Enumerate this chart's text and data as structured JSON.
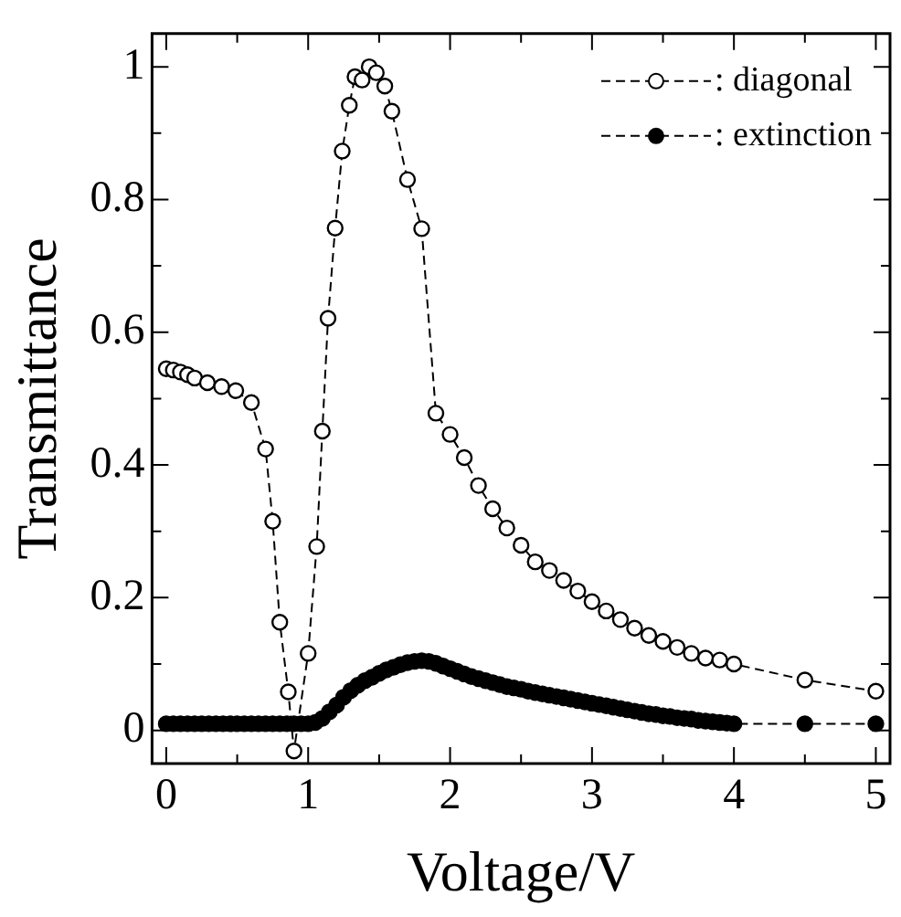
{
  "chart_data": {
    "type": "line",
    "xlabel": "Voltage/V",
    "ylabel": "Transmittance",
    "xlim": [
      -0.1,
      5.1
    ],
    "ylim": [
      -0.05,
      1.05
    ],
    "xticks": [
      0,
      {
        "value": 0.5,
        "label": null
      },
      1,
      {
        "value": 1.5,
        "label": null
      },
      2,
      {
        "value": 2.5,
        "label": null
      },
      3,
      {
        "value": 3.5,
        "label": null
      },
      4,
      {
        "value": 4.5,
        "label": null
      },
      5
    ],
    "yticks": [
      0,
      {
        "value": 0.1,
        "label": null
      },
      0.2,
      {
        "value": 0.3,
        "label": null
      },
      0.4,
      {
        "value": 0.5,
        "label": null
      },
      0.6,
      {
        "value": 0.7,
        "label": null
      },
      0.8,
      {
        "value": 0.9,
        "label": null
      },
      1
    ],
    "grid": false,
    "legend": "top right",
    "marker": "circle",
    "line_style": "dashed",
    "series": [
      {
        "name": ": diagonal",
        "color": "#000000",
        "x": [
          0,
          0.05,
          0.1,
          0.15,
          0.2,
          0.29,
          0.39,
          0.49,
          0.6,
          0.7,
          0.75,
          0.8,
          0.86,
          0.9,
          1.0,
          1.06,
          1.1,
          1.14,
          1.19,
          1.24,
          1.29,
          1.33,
          1.38,
          1.43,
          1.48,
          1.54,
          1.59,
          1.7,
          1.8,
          1.9,
          2.0,
          2.1,
          2.2,
          2.3,
          2.4,
          2.5,
          2.6,
          2.7,
          2.8,
          2.9,
          3.0,
          3.1,
          3.2,
          3.3,
          3.4,
          3.5,
          3.6,
          3.7,
          3.8,
          3.9,
          4.0,
          4.5,
          5.0
        ],
        "values": [
          0.545,
          0.543,
          0.54,
          0.536,
          0.531,
          0.524,
          0.518,
          0.512,
          0.494,
          0.424,
          0.315,
          0.163,
          0.058,
          -0.031,
          0.116,
          0.277,
          0.451,
          0.621,
          0.757,
          0.873,
          0.942,
          0.985,
          0.98,
          1.0,
          0.991,
          0.971,
          0.933,
          0.83,
          0.756,
          0.478,
          0.446,
          0.411,
          0.369,
          0.334,
          0.305,
          0.279,
          0.254,
          0.241,
          0.226,
          0.21,
          0.194,
          0.18,
          0.167,
          0.154,
          0.143,
          0.134,
          0.125,
          0.116,
          0.109,
          0.106,
          0.1,
          0.076,
          0.059
        ]
      },
      {
        "name": ": extinction",
        "color": "#000000",
        "x": [
          0,
          0.05,
          0.1,
          0.15,
          0.2,
          0.25,
          0.3,
          0.35,
          0.4,
          0.45,
          0.5,
          0.55,
          0.6,
          0.65,
          0.7,
          0.75,
          0.8,
          0.85,
          0.9,
          0.95,
          1.0,
          1.05,
          1.1,
          1.15,
          1.2,
          1.25,
          1.3,
          1.35,
          1.4,
          1.45,
          1.5,
          1.55,
          1.6,
          1.65,
          1.7,
          1.75,
          1.8,
          1.85,
          1.9,
          1.95,
          2.0,
          2.05,
          2.1,
          2.15,
          2.2,
          2.25,
          2.3,
          2.35,
          2.4,
          2.45,
          2.5,
          2.55,
          2.6,
          2.65,
          2.7,
          2.75,
          2.8,
          2.85,
          2.9,
          2.95,
          3.0,
          3.05,
          3.1,
          3.15,
          3.2,
          3.25,
          3.3,
          3.35,
          3.4,
          3.45,
          3.5,
          3.55,
          3.6,
          3.65,
          3.7,
          3.75,
          3.8,
          3.85,
          3.9,
          3.95,
          4.0,
          4.5,
          5.0
        ],
        "values": [
          0.01,
          0.01,
          0.01,
          0.01,
          0.01,
          0.01,
          0.01,
          0.01,
          0.01,
          0.01,
          0.01,
          0.01,
          0.01,
          0.01,
          0.01,
          0.01,
          0.01,
          0.01,
          0.01,
          0.01,
          0.01,
          0.012,
          0.018,
          0.028,
          0.038,
          0.05,
          0.06,
          0.068,
          0.075,
          0.08,
          0.086,
          0.091,
          0.095,
          0.099,
          0.102,
          0.104,
          0.105,
          0.104,
          0.101,
          0.097,
          0.093,
          0.089,
          0.085,
          0.081,
          0.078,
          0.075,
          0.072,
          0.069,
          0.066,
          0.064,
          0.062,
          0.059,
          0.057,
          0.055,
          0.053,
          0.051,
          0.049,
          0.047,
          0.045,
          0.043,
          0.041,
          0.039,
          0.037,
          0.035,
          0.033,
          0.031,
          0.029,
          0.027,
          0.025,
          0.024,
          0.022,
          0.021,
          0.019,
          0.018,
          0.017,
          0.015,
          0.014,
          0.013,
          0.012,
          0.011,
          0.01,
          0.01,
          0.01
        ]
      }
    ]
  }
}
